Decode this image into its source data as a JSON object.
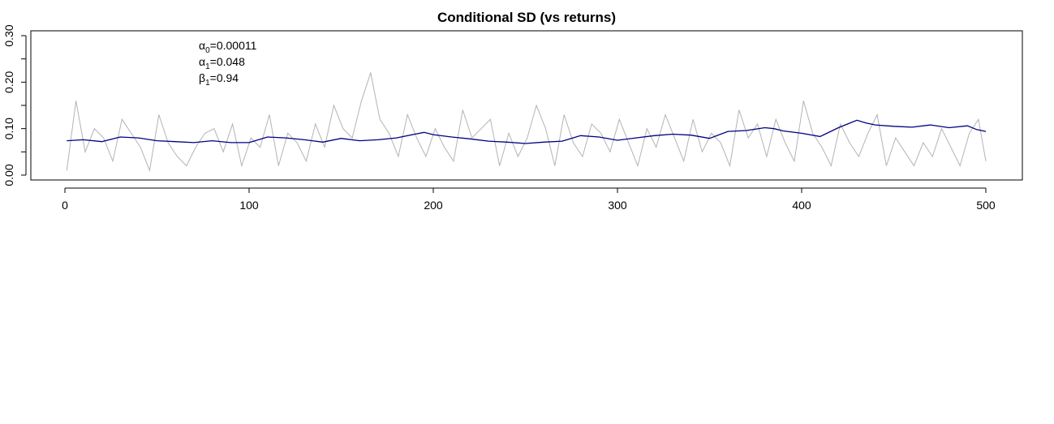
{
  "chart_data": {
    "type": "line",
    "title": "Conditional SD (vs returns)",
    "xlabel": "",
    "ylabel": "",
    "xlim": [
      1,
      500
    ],
    "ylim": [
      0,
      0.3
    ],
    "x_ticks": [
      0,
      100,
      200,
      300,
      400,
      500
    ],
    "x_tick_labels": [
      "0",
      "100",
      "200",
      "300",
      "400",
      "500"
    ],
    "y_ticks": [
      0,
      0.1,
      0.2,
      0.3
    ],
    "y_tick_labels": [
      "0.00",
      "0.10",
      "0.20",
      "0.30"
    ],
    "y_minor_ticks": [
      0.05,
      0.15,
      0.25
    ],
    "grid": false,
    "annotations": [
      {
        "symbol": "α",
        "subscript": "0",
        "text": "0.00011"
      },
      {
        "symbol": "α",
        "subscript": "1",
        "text": "0.048"
      },
      {
        "symbol": "β",
        "subscript": "1",
        "text": "0.94"
      }
    ],
    "series": [
      {
        "role": "absolute returns",
        "color": "#b3b3b3",
        "x_step": 5,
        "values": [
          0.01,
          0.16,
          0.05,
          0.1,
          0.08,
          0.03,
          0.12,
          0.09,
          0.06,
          0.01,
          0.13,
          0.07,
          0.04,
          0.02,
          0.06,
          0.09,
          0.1,
          0.05,
          0.11,
          0.02,
          0.08,
          0.06,
          0.13,
          0.02,
          0.09,
          0.07,
          0.03,
          0.11,
          0.06,
          0.15,
          0.1,
          0.08,
          0.16,
          0.22,
          0.12,
          0.09,
          0.04,
          0.13,
          0.08,
          0.04,
          0.1,
          0.06,
          0.03,
          0.14,
          0.08,
          0.1,
          0.12,
          0.02,
          0.09,
          0.04,
          0.08,
          0.15,
          0.1,
          0.02,
          0.13,
          0.07,
          0.04,
          0.11,
          0.09,
          0.05,
          0.12,
          0.07,
          0.02,
          0.1,
          0.06,
          0.13,
          0.08,
          0.03,
          0.12,
          0.05,
          0.09,
          0.07,
          0.02,
          0.14,
          0.08,
          0.11,
          0.04,
          0.12,
          0.07,
          0.03,
          0.16,
          0.09,
          0.06,
          0.02,
          0.11,
          0.07,
          0.04,
          0.09,
          0.13,
          0.02,
          0.08,
          0.05,
          0.02,
          0.07,
          0.04,
          0.1,
          0.06,
          0.02,
          0.09,
          0.12,
          0.03
        ]
      },
      {
        "role": "conditional SD",
        "color": "#000080",
        "x": [
          1,
          10,
          20,
          30,
          40,
          50,
          60,
          70,
          80,
          90,
          100,
          110,
          120,
          130,
          140,
          150,
          160,
          170,
          180,
          190,
          195,
          200,
          210,
          220,
          230,
          240,
          250,
          260,
          270,
          280,
          290,
          300,
          310,
          320,
          330,
          340,
          350,
          360,
          370,
          380,
          385,
          390,
          400,
          410,
          420,
          425,
          430,
          435,
          440,
          450,
          460,
          470,
          480,
          490,
          495,
          500
        ],
        "values": [
          0.074,
          0.076,
          0.072,
          0.082,
          0.08,
          0.074,
          0.072,
          0.07,
          0.074,
          0.07,
          0.07,
          0.082,
          0.08,
          0.076,
          0.071,
          0.079,
          0.074,
          0.076,
          0.08,
          0.088,
          0.092,
          0.087,
          0.082,
          0.078,
          0.073,
          0.071,
          0.068,
          0.071,
          0.073,
          0.085,
          0.082,
          0.075,
          0.08,
          0.085,
          0.088,
          0.086,
          0.079,
          0.094,
          0.096,
          0.102,
          0.1,
          0.095,
          0.09,
          0.083,
          0.102,
          0.11,
          0.118,
          0.112,
          0.108,
          0.105,
          0.103,
          0.108,
          0.102,
          0.106,
          0.098,
          0.094
        ]
      }
    ]
  }
}
